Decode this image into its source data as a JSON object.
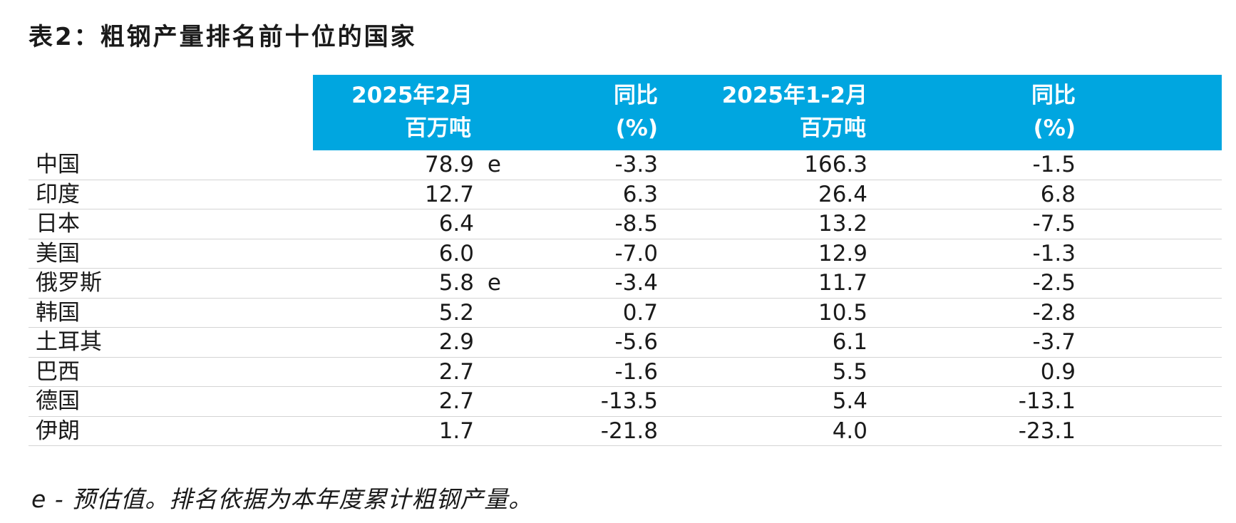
{
  "title": "表2：粗钢产量排名前十位的国家",
  "header": {
    "col1_line1": "2025年2月",
    "col1_line2": "百万吨",
    "col2_line1": "同比",
    "col2_line2": "(%)",
    "col3_line1": "2025年1-2月",
    "col3_line2": "百万吨",
    "col4_line1": "同比",
    "col4_line2": "(%)"
  },
  "header_color": "#00a6e0",
  "rows": [
    {
      "country": "中国",
      "feb": "78.9",
      "est": "e",
      "yoy1": "-3.3",
      "ytd": "166.3",
      "yoy2": "-1.5"
    },
    {
      "country": "印度",
      "feb": "12.7",
      "est": "",
      "yoy1": "6.3",
      "ytd": "26.4",
      "yoy2": "6.8"
    },
    {
      "country": "日本",
      "feb": "6.4",
      "est": "",
      "yoy1": "-8.5",
      "ytd": "13.2",
      "yoy2": "-7.5"
    },
    {
      "country": "美国",
      "feb": "6.0",
      "est": "",
      "yoy1": "-7.0",
      "ytd": "12.9",
      "yoy2": "-1.3"
    },
    {
      "country": "俄罗斯",
      "feb": "5.8",
      "est": "e",
      "yoy1": "-3.4",
      "ytd": "11.7",
      "yoy2": "-2.5"
    },
    {
      "country": "韩国",
      "feb": "5.2",
      "est": "",
      "yoy1": "0.7",
      "ytd": "10.5",
      "yoy2": "-2.8"
    },
    {
      "country": "土耳其",
      "feb": "2.9",
      "est": "",
      "yoy1": "-5.6",
      "ytd": "6.1",
      "yoy2": "-3.7"
    },
    {
      "country": "巴西",
      "feb": "2.7",
      "est": "",
      "yoy1": "-1.6",
      "ytd": "5.5",
      "yoy2": "0.9"
    },
    {
      "country": "德国",
      "feb": "2.7",
      "est": "",
      "yoy1": "-13.5",
      "ytd": "5.4",
      "yoy2": "-13.1"
    },
    {
      "country": "伊朗",
      "feb": "1.7",
      "est": "",
      "yoy1": "-21.8",
      "ytd": "4.0",
      "yoy2": "-23.1"
    }
  ],
  "footnote": "e - 预估值。排名依据为本年度累计粗钢产量。"
}
